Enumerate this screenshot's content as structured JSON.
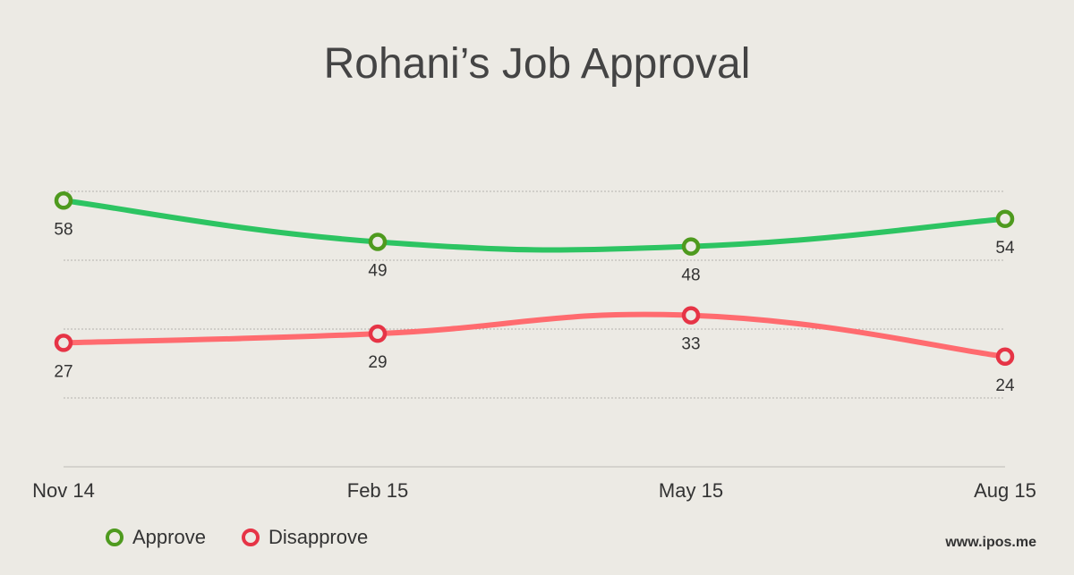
{
  "chart_data": {
    "type": "line",
    "title": "Rohani’s Job Approval",
    "categories": [
      "Nov 14",
      "Feb 15",
      "May 15",
      "Aug 15"
    ],
    "series": [
      {
        "name": "Approve",
        "values": [
          58,
          49,
          48,
          54
        ],
        "color": "#2DC462",
        "marker_color": "#4E9A1E"
      },
      {
        "name": "Disapprove",
        "values": [
          27,
          29,
          33,
          24
        ],
        "color": "#FF6B6F",
        "marker_color": "#E63446"
      }
    ],
    "ylim": [
      0,
      60
    ],
    "grid": true,
    "legend": "bottom-left"
  },
  "source": "www.ipos.me"
}
